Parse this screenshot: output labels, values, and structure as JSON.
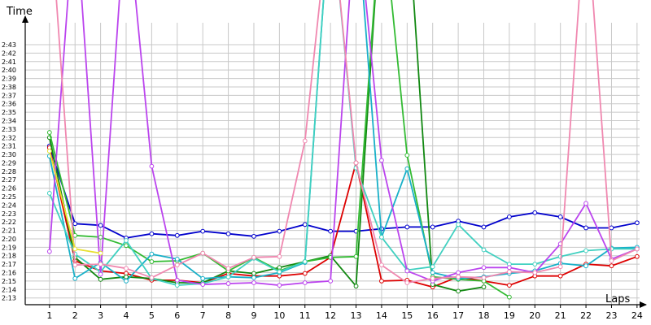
{
  "chart_data": {
    "type": "line",
    "xlabel": "Laps",
    "ylabel": "Time",
    "x": [
      1,
      2,
      3,
      4,
      5,
      6,
      7,
      8,
      9,
      10,
      11,
      12,
      13,
      14,
      15,
      16,
      17,
      18,
      19,
      20,
      21,
      22,
      23,
      24
    ],
    "xlim": [
      0.05,
      24.1
    ],
    "ylim": [
      12.2,
      45.6
    ],
    "y_ticks": [
      {
        "label": "2:13",
        "value": 13
      },
      {
        "label": "2:14",
        "value": 14
      },
      {
        "label": "2:15",
        "value": 15
      },
      {
        "label": "2:16",
        "value": 16
      },
      {
        "label": "2:17",
        "value": 17
      },
      {
        "label": "2:18",
        "value": 18
      },
      {
        "label": "2:19",
        "value": 19
      },
      {
        "label": "2:20",
        "value": 20
      },
      {
        "label": "2:21",
        "value": 21
      },
      {
        "label": "2:22",
        "value": 22
      },
      {
        "label": "2:23",
        "value": 23
      },
      {
        "label": "2:24",
        "value": 24
      },
      {
        "label": "2:25",
        "value": 25
      },
      {
        "label": "2:26",
        "value": 26
      },
      {
        "label": "2:27",
        "value": 27
      },
      {
        "label": "2:28",
        "value": 28
      },
      {
        "label": "2:29",
        "value": 29
      },
      {
        "label": "2:30",
        "value": 30
      },
      {
        "label": "2:31",
        "value": 31
      },
      {
        "label": "2:32",
        "value": 32
      },
      {
        "label": "2:33",
        "value": 33
      },
      {
        "label": "2:34",
        "value": 34
      },
      {
        "label": "2:35",
        "value": 35
      },
      {
        "label": "2:36",
        "value": 36
      },
      {
        "label": "2:37",
        "value": 37
      },
      {
        "label": "2:38",
        "value": 38
      },
      {
        "label": "2:39",
        "value": 39
      },
      {
        "label": "2:40",
        "value": 40
      },
      {
        "label": "2:41",
        "value": 41
      },
      {
        "label": "2:42",
        "value": 42
      },
      {
        "label": "2:43",
        "value": 43
      }
    ],
    "x_ticks": [
      "1",
      "2",
      "3",
      "4",
      "5",
      "6",
      "7",
      "8",
      "9",
      "10",
      "11",
      "12",
      "13",
      "14",
      "15",
      "16",
      "17",
      "18",
      "19",
      "20",
      "21",
      "22",
      "23",
      "24"
    ],
    "grid": true,
    "legend": "none",
    "series": [
      {
        "color": "#0000cc",
        "values": [
          31.0,
          21.8,
          21.6,
          20.1,
          20.6,
          20.4,
          20.9,
          20.6,
          20.3,
          20.9,
          21.7,
          20.9,
          20.9,
          21.2,
          21.4,
          21.4,
          22.1,
          21.4,
          22.6,
          23.1,
          22.6,
          21.3,
          21.3,
          21.9
        ]
      },
      {
        "color": "#dd0000",
        "values": [
          30.8,
          17.4,
          16.2,
          15.9,
          15.1,
          15.1,
          14.8,
          15.9,
          15.6,
          15.6,
          15.9,
          17.8,
          29.0,
          15.0,
          15.1,
          14.3,
          15.5,
          15.0,
          14.5,
          15.6,
          15.6,
          17.0,
          16.8,
          17.9
        ]
      },
      {
        "color": "#118811",
        "values": [
          32.0,
          17.8,
          15.2,
          15.5,
          15.3,
          14.8,
          14.8,
          16.2,
          15.9,
          16.6,
          17.3,
          18.0,
          14.4,
          60,
          60,
          14.6,
          13.8,
          14.3,
          null,
          null,
          null,
          null,
          null,
          null
        ]
      },
      {
        "color": "#33bb33",
        "values": [
          32.6,
          20.4,
          20.2,
          19.2,
          17.3,
          17.4,
          18.3,
          16.2,
          17.8,
          16.2,
          17.3,
          17.8,
          17.9,
          60,
          29.9,
          15.5,
          15.2,
          15.0,
          13.1,
          null,
          null,
          null,
          null,
          null
        ]
      },
      {
        "color": "#18b0c8",
        "values": [
          29.8,
          15.3,
          17.2,
          15.0,
          18.2,
          17.6,
          15.3,
          15.5,
          15.4,
          16.0,
          17.2,
          60,
          60,
          20.2,
          28.3,
          16.0,
          15.3,
          15.5,
          15.9,
          16.2,
          17.1,
          16.8,
          18.9,
          19.0
        ]
      },
      {
        "color": "#40d0c0",
        "values": [
          25.4,
          18.2,
          16.1,
          19.8,
          15.3,
          14.5,
          14.7,
          15.5,
          17.7,
          16.1,
          17.3,
          60,
          28.4,
          20.2,
          16.3,
          16.7,
          21.7,
          18.7,
          17.0,
          17.0,
          17.9,
          18.6,
          18.8,
          18.8
        ]
      },
      {
        "color": "#bb44ee",
        "values": [
          18.5,
          60,
          15.8,
          60,
          28.6,
          15.1,
          14.6,
          14.7,
          14.8,
          14.5,
          14.8,
          15.0,
          60,
          29.3,
          16.2,
          15.0,
          16.0,
          16.6,
          16.6,
          16.0,
          19.4,
          24.2,
          17.6,
          18.8
        ]
      },
      {
        "color": "#f088b0",
        "values": [
          60,
          16.9,
          17.0,
          16.5,
          15.4,
          16.9,
          18.3,
          16.5,
          17.8,
          17.9,
          31.6,
          60,
          29.0,
          16.9,
          14.8,
          15.3,
          15.5,
          15.4,
          16.1,
          16.0,
          16.7,
          60,
          17.4,
          18.8
        ]
      },
      {
        "color": "#e8e030",
        "values": [
          30.4,
          18.8,
          18.3,
          null,
          null,
          null,
          null,
          null,
          null,
          null,
          null,
          null,
          null,
          null,
          null,
          null,
          null,
          null,
          null,
          null,
          null,
          null,
          null,
          null
        ]
      }
    ]
  }
}
